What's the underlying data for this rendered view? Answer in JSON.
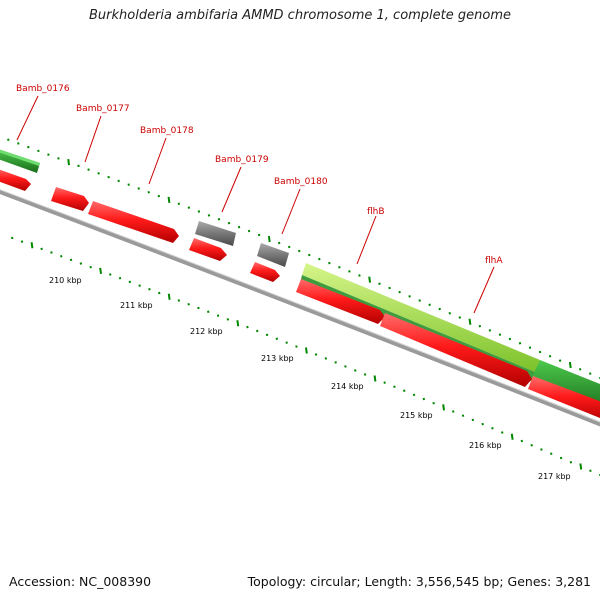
{
  "title": "Burkholderia ambifaria AMMD chromosome 1, complete genome",
  "footer": {
    "accession": "Accession: NC_008390",
    "summary": "Topology: circular; Length: 3,556,545 bp; Genes: 3,281"
  },
  "colors": {
    "forward_gene": "#ff1a1a",
    "other_feature": "#777777",
    "gene_label": "#cc0000",
    "tick": "#008800",
    "backbone": "#888888",
    "highlight_light": "#aee14d",
    "highlight_dark": "#2e8b2e"
  },
  "genes": [
    {
      "label": "Bamb_0176"
    },
    {
      "label": "Bamb_0177"
    },
    {
      "label": "Bamb_0178"
    },
    {
      "label": "Bamb_0179"
    },
    {
      "label": "Bamb_0180"
    },
    {
      "label": "flhB"
    },
    {
      "label": "flhA"
    }
  ],
  "scale": [
    {
      "label": "210 kbp"
    },
    {
      "label": "211 kbp"
    },
    {
      "label": "212 kbp"
    },
    {
      "label": "213 kbp"
    },
    {
      "label": "214 kbp"
    },
    {
      "label": "215 kbp"
    },
    {
      "label": "216 kbp"
    },
    {
      "label": "217 kbp"
    }
  ]
}
